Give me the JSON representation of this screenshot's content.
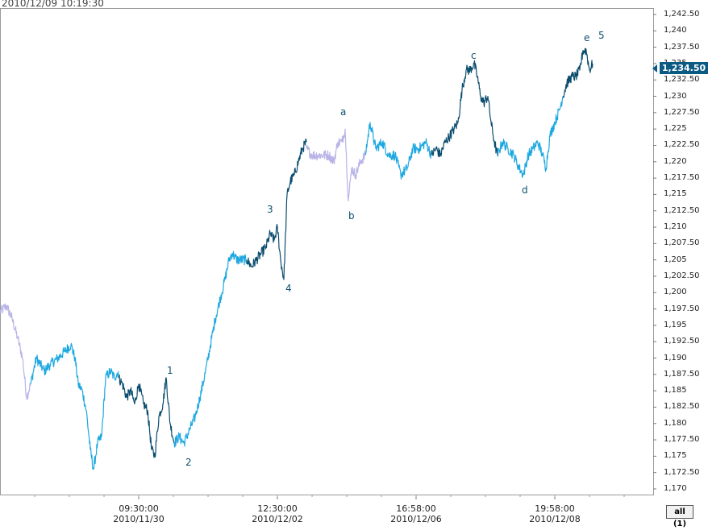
{
  "header": {
    "timestamp": "2010/12/09 10:19:30"
  },
  "chart_data": {
    "type": "line",
    "title": "",
    "xlabel": "",
    "ylabel": "",
    "ylim": [
      1169.0,
      1243.0
    ],
    "y_ticks": [
      "1,242.50",
      "1,240",
      "1,237.50",
      "1,235",
      "1,232.50",
      "1,230",
      "1,227.50",
      "1,225",
      "1,222.50",
      "1,220",
      "1,217.50",
      "1,215",
      "1,212.50",
      "1,210",
      "1,207.50",
      "1,205",
      "1,202.50",
      "1,200",
      "1,197.50",
      "1,195",
      "1,192.50",
      "1,190",
      "1,187.50",
      "1,185",
      "1,182.50",
      "1,180",
      "1,177.50",
      "1,175",
      "1,172.50",
      "1,170"
    ],
    "x_ticks": [
      {
        "time": "09:30:00",
        "date": "2010/11/30"
      },
      {
        "time": "12:30:00",
        "date": "2010/12/02"
      },
      {
        "time": "16:58:00",
        "date": "2010/12/06"
      },
      {
        "time": "19:58:00",
        "date": "2010/12/08"
      }
    ],
    "last_price": "1,234.50",
    "colors": {
      "lavender": "#b8b4e8",
      "light_blue": "#1ea8e0",
      "dark_blue": "#0b4d6e",
      "grid": "#c8c8c8"
    },
    "series": [
      {
        "color": "lavender",
        "points": [
          [
            0,
            1197
          ],
          [
            8,
            1198
          ],
          [
            15,
            1196
          ],
          [
            22,
            1193
          ],
          [
            28,
            1190
          ],
          [
            33,
            1184
          ],
          [
            38,
            1186
          ]
        ]
      },
      {
        "color": "light_blue",
        "points": [
          [
            38,
            1186
          ],
          [
            45,
            1190
          ],
          [
            55,
            1188
          ],
          [
            62,
            1189
          ],
          [
            72,
            1190
          ],
          [
            80,
            1191
          ],
          [
            88,
            1192
          ],
          [
            93,
            1190
          ],
          [
            97,
            1186
          ],
          [
            102,
            1185
          ],
          [
            107,
            1182
          ],
          [
            112,
            1176
          ],
          [
            116,
            1173
          ],
          [
            121,
            1177
          ],
          [
            126,
            1178
          ],
          [
            131,
            1187
          ],
          [
            137,
            1188
          ],
          [
            142,
            1187
          ],
          [
            147,
            1188
          ]
        ]
      },
      {
        "color": "dark_blue",
        "points": [
          [
            147,
            1187
          ],
          [
            152,
            1186
          ],
          [
            157,
            1184
          ],
          [
            162,
            1185
          ],
          [
            167,
            1183
          ],
          [
            172,
            1186
          ],
          [
            178,
            1183
          ],
          [
            183,
            1182
          ],
          [
            188,
            1176
          ],
          [
            192,
            1175
          ],
          [
            197,
            1181
          ],
          [
            202,
            1183
          ],
          [
            206,
            1187
          ],
          [
            211,
            1180
          ],
          [
            216,
            1177
          ]
        ]
      },
      {
        "color": "light_blue",
        "points": [
          [
            216,
            1177
          ],
          [
            222,
            1178
          ],
          [
            228,
            1177
          ],
          [
            235,
            1179
          ],
          [
            242,
            1181
          ],
          [
            248,
            1184
          ],
          [
            255,
            1188
          ],
          [
            261,
            1192
          ],
          [
            267,
            1196
          ],
          [
            273,
            1199
          ],
          [
            279,
            1202
          ],
          [
            284,
            1205
          ],
          [
            288,
            1206
          ],
          [
            294,
            1205
          ],
          [
            300,
            1205
          ],
          [
            306,
            1205
          ]
        ]
      },
      {
        "color": "dark_blue",
        "points": [
          [
            306,
            1205
          ],
          [
            312,
            1204
          ],
          [
            318,
            1205
          ],
          [
            324,
            1206
          ],
          [
            330,
            1207
          ],
          [
            335,
            1209
          ],
          [
            340,
            1208
          ],
          [
            344,
            1210
          ],
          [
            348,
            1205
          ],
          [
            352,
            1202
          ],
          [
            356,
            1215
          ],
          [
            360,
            1217
          ],
          [
            365,
            1218
          ],
          [
            370,
            1220
          ],
          [
            375,
            1222
          ],
          [
            380,
            1223
          ]
        ]
      },
      {
        "color": "lavender",
        "points": [
          [
            380,
            1222
          ],
          [
            387,
            1221
          ],
          [
            394,
            1221
          ],
          [
            401,
            1221
          ],
          [
            408,
            1221
          ],
          [
            414,
            1220
          ],
          [
            419,
            1223
          ],
          [
            424,
            1223
          ],
          [
            428,
            1225
          ],
          [
            432,
            1214
          ],
          [
            436,
            1219
          ],
          [
            441,
            1218
          ],
          [
            447,
            1220
          ],
          [
            453,
            1221
          ]
        ]
      },
      {
        "color": "light_blue",
        "points": [
          [
            453,
            1221
          ],
          [
            459,
            1226
          ],
          [
            466,
            1222
          ],
          [
            474,
            1223
          ],
          [
            482,
            1221
          ],
          [
            490,
            1221
          ],
          [
            497,
            1218
          ],
          [
            505,
            1219
          ],
          [
            512,
            1222
          ],
          [
            520,
            1222
          ],
          [
            528,
            1223
          ],
          [
            535,
            1221
          ]
        ]
      },
      {
        "color": "dark_blue",
        "points": [
          [
            535,
            1221
          ],
          [
            541,
            1222
          ],
          [
            546,
            1221
          ],
          [
            552,
            1223
          ],
          [
            558,
            1224
          ],
          [
            563,
            1225
          ],
          [
            568,
            1226
          ],
          [
            573,
            1231
          ],
          [
            578,
            1234
          ],
          [
            583,
            1234
          ],
          [
            588,
            1235
          ],
          [
            592,
            1233
          ],
          [
            596,
            1230
          ],
          [
            600,
            1229
          ],
          [
            605,
            1230
          ],
          [
            609,
            1226
          ],
          [
            613,
            1223
          ],
          [
            617,
            1221
          ]
        ]
      },
      {
        "color": "light_blue",
        "points": [
          [
            617,
            1221
          ],
          [
            623,
            1223
          ],
          [
            630,
            1222
          ],
          [
            637,
            1221
          ],
          [
            644,
            1219
          ],
          [
            649,
            1218
          ],
          [
            655,
            1221
          ],
          [
            661,
            1222
          ],
          [
            667,
            1223
          ],
          [
            673,
            1221
          ],
          [
            677,
            1219
          ],
          [
            682,
            1224
          ],
          [
            688,
            1226
          ],
          [
            694,
            1228
          ],
          [
            698,
            1230
          ]
        ]
      },
      {
        "color": "dark_blue",
        "points": [
          [
            698,
            1230
          ],
          [
            703,
            1232
          ],
          [
            709,
            1233
          ],
          [
            714,
            1233
          ],
          [
            719,
            1234
          ],
          [
            723,
            1237
          ],
          [
            727,
            1237
          ],
          [
            731,
            1234
          ],
          [
            735,
            1235
          ]
        ]
      }
    ],
    "wave_labels": [
      "1",
      "2",
      "3",
      "4",
      "a",
      "b",
      "c",
      "d",
      "e",
      "5"
    ]
  },
  "controls": {
    "period_button": "all (1)"
  }
}
